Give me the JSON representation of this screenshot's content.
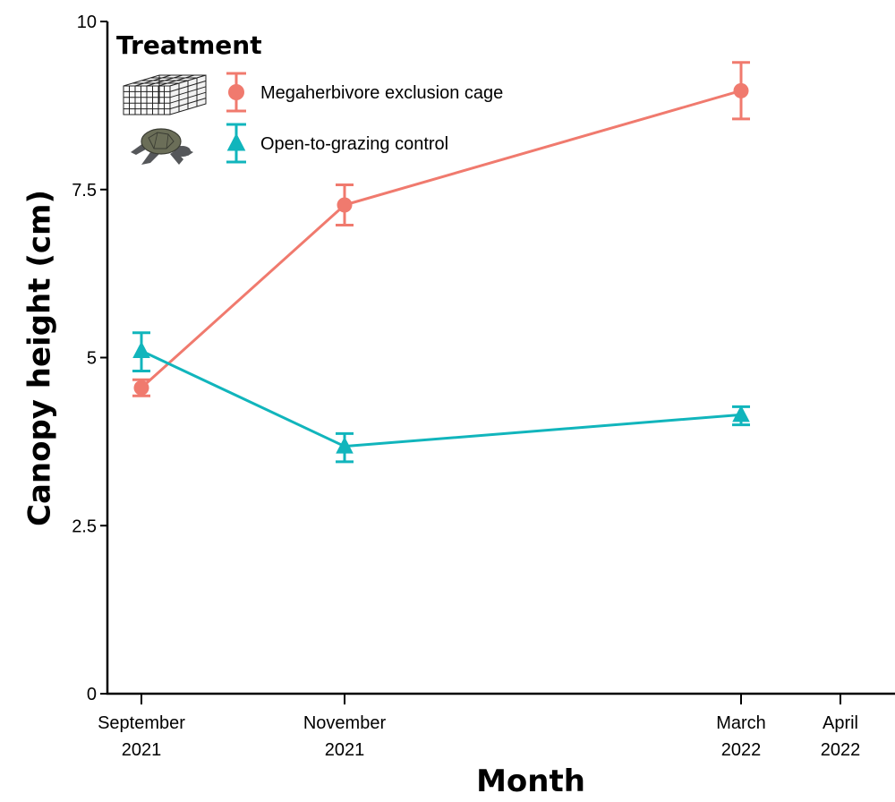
{
  "chart_data": {
    "type": "line",
    "x": [
      "September 2021",
      "November 2021",
      "March 2022",
      "April 2022"
    ],
    "x_tick_labels": [
      [
        "September",
        "2021"
      ],
      [
        "November",
        "2021"
      ],
      [
        "March",
        "2022"
      ],
      [
        "April",
        "2022"
      ]
    ],
    "xlabel": "Month",
    "ylabel": "Canopy height (cm)",
    "ylim": [
      0,
      10
    ],
    "y_ticks": [
      0,
      2.5,
      5,
      7.5,
      10
    ],
    "y_tick_labels": [
      "0",
      "2.5",
      "5",
      "7.5",
      "10"
    ],
    "grid": false,
    "legend": {
      "title": "Treatment",
      "placement": "top-left"
    },
    "series": [
      {
        "name": "Megaherbivore exclusion cage",
        "marker": "circle",
        "color": "#f07a6e",
        "icon": "cage-icon",
        "x": [
          "September 2021",
          "November 2021",
          "March 2022"
        ],
        "values": [
          4.55,
          7.27,
          8.97
        ],
        "error_low": [
          4.43,
          6.97,
          8.55
        ],
        "error_high": [
          4.67,
          7.57,
          9.39
        ]
      },
      {
        "name": "Open-to-grazing control",
        "marker": "triangle",
        "color": "#11b5bc",
        "icon": "turtle-icon",
        "x": [
          "September 2021",
          "November 2021",
          "March 2022"
        ],
        "values": [
          5.1,
          3.68,
          4.15
        ],
        "error_low": [
          4.8,
          3.45,
          4.0
        ],
        "error_high": [
          5.37,
          3.87,
          4.27
        ]
      }
    ]
  }
}
